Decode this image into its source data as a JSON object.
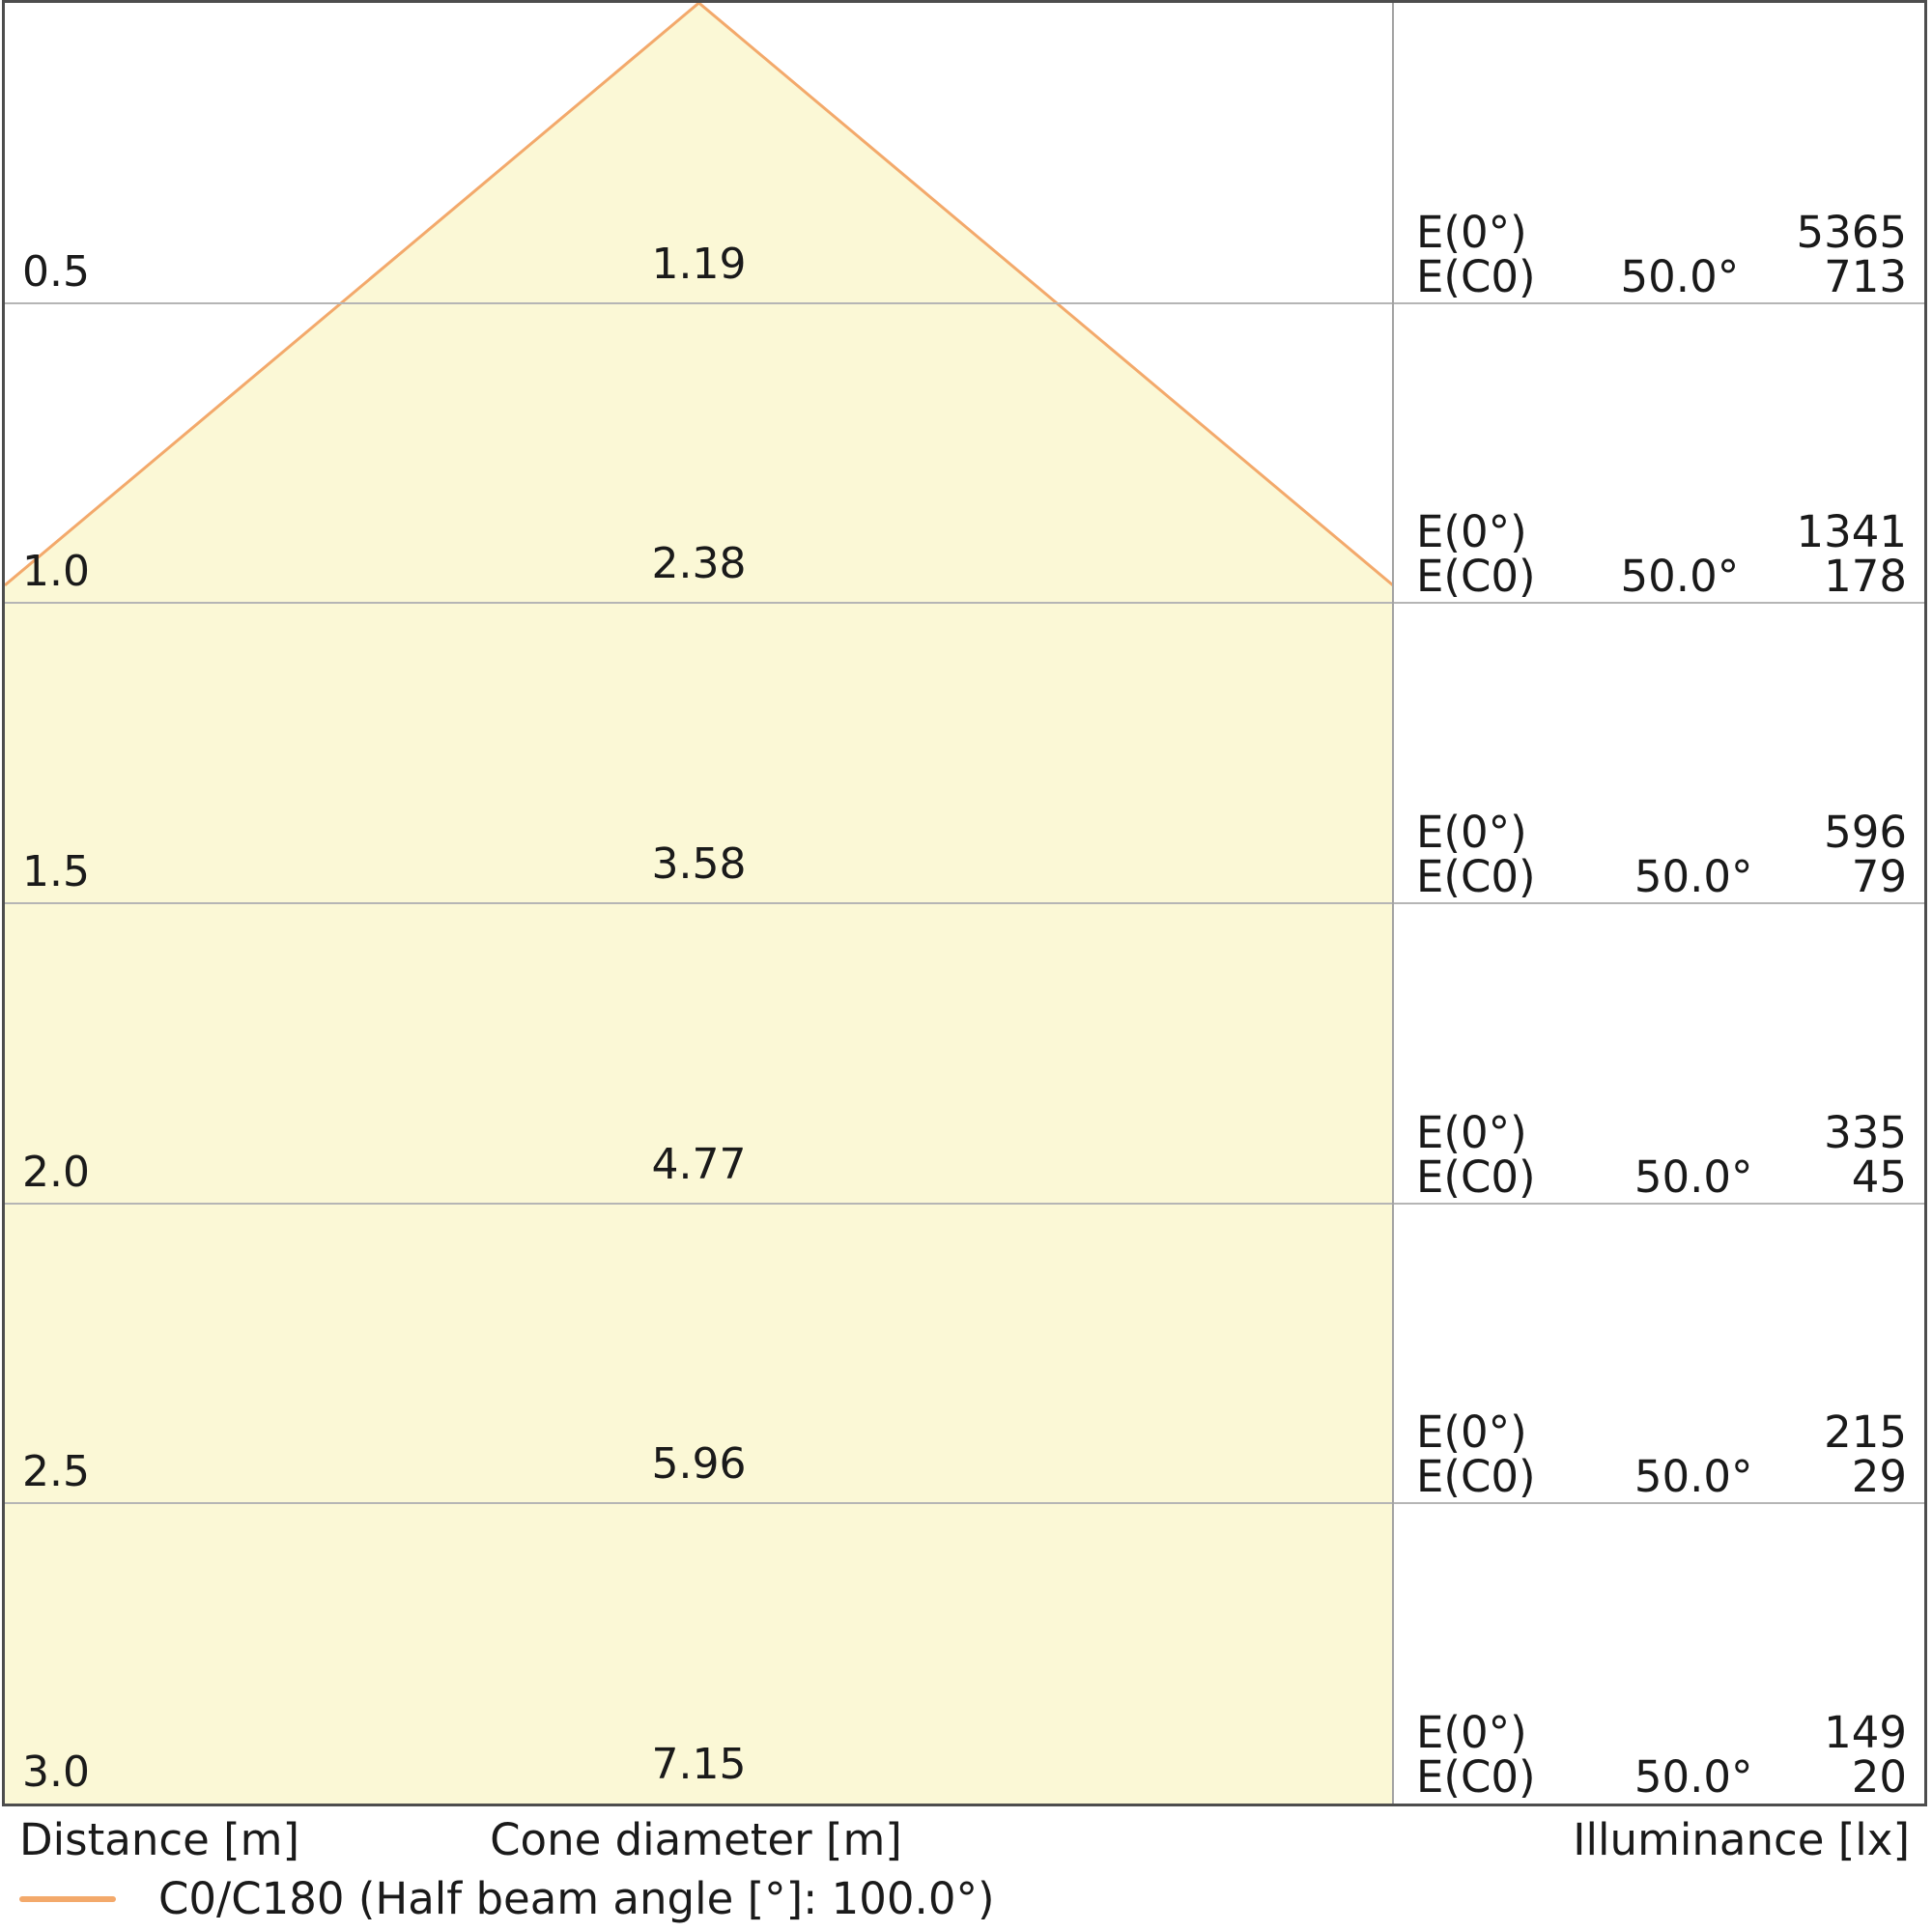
{
  "footer": {
    "distance_label": "Distance [m]",
    "cone_diameter_label": "Cone diameter [m]",
    "illuminance_label": "Illuminance [lx]"
  },
  "legend": {
    "series_label": "C0/C180 (Half beam angle [°]: 100.0°)"
  },
  "colors": {
    "cone_fill": "#fbf8d6",
    "cone_edge": "#f3a96b",
    "grid_line": "#b5b5b5",
    "panel_divider": "#a3a3a3",
    "outer_border": "#4d4d4d",
    "text": "#1a1a1a"
  },
  "chart_data": {
    "type": "area",
    "description": "Luminaire light cone diagram: cone diameter and illuminance versus distance below the luminaire",
    "c_plane": "C0/C180",
    "half_beam_angle_deg": 100.0,
    "e0_label": "E(0°)",
    "ec0_label": "E(C0)",
    "ec0_angle_label": "50.0°",
    "columns": [
      "Distance [m]",
      "Cone diameter [m]",
      "E(0°) [lx]",
      "E(C0) at 50.0° [lx]"
    ],
    "rows": [
      {
        "distance": "0.5",
        "cone_diameter": "1.19",
        "e0": "5365",
        "ec0": "713"
      },
      {
        "distance": "1.0",
        "cone_diameter": "2.38",
        "e0": "1341",
        "ec0": "178"
      },
      {
        "distance": "1.5",
        "cone_diameter": "3.58",
        "e0": "596",
        "ec0": "79"
      },
      {
        "distance": "2.0",
        "cone_diameter": "4.77",
        "e0": "335",
        "ec0": "45"
      },
      {
        "distance": "2.5",
        "cone_diameter": "5.96",
        "e0": "215",
        "ec0": "29"
      },
      {
        "distance": "3.0",
        "cone_diameter": "7.15",
        "e0": "149",
        "ec0": "20"
      }
    ],
    "x_axis": {
      "label": "Distance [m]",
      "ticks": [
        0.5,
        1.0,
        1.5,
        2.0,
        2.5,
        3.0
      ]
    },
    "grid": true,
    "legend_position": "bottom-left"
  }
}
